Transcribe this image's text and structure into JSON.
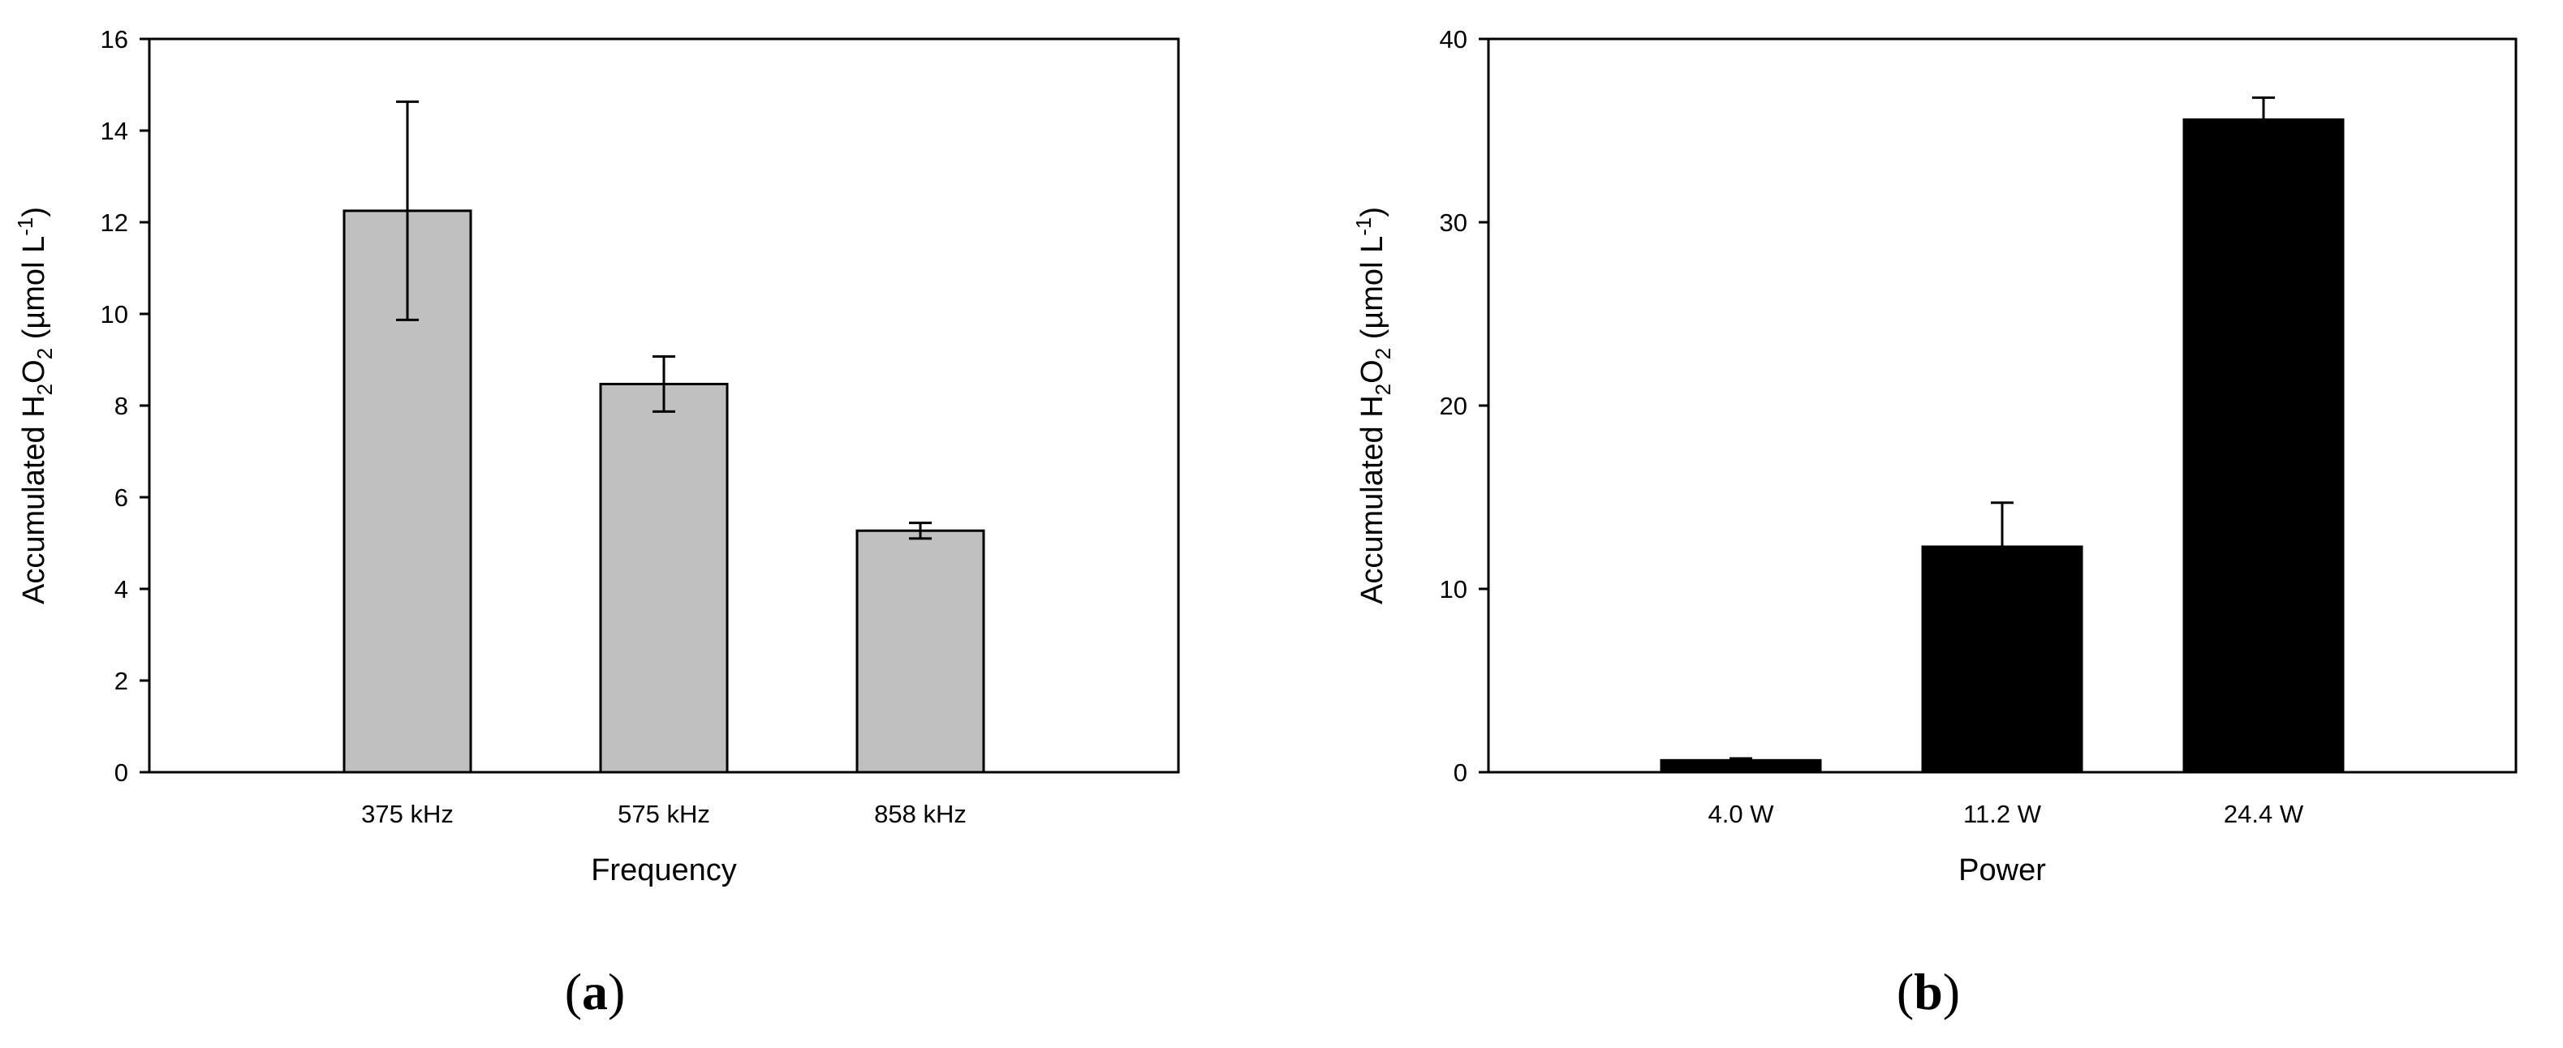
{
  "chart_data": [
    {
      "type": "bar",
      "panel_label": "a",
      "categories": [
        "375 kHz",
        "575 kHz",
        "858 kHz"
      ],
      "values": [
        12.25,
        8.47,
        5.27
      ],
      "errors": [
        2.38,
        0.6,
        0.17
      ],
      "error_style": "both",
      "bar_color": "#c0c0c0",
      "xlabel": "Frequency",
      "ylabel_parts": {
        "base": "Accumulated H",
        "sub1": "2",
        "mid": "O",
        "sub2": "2",
        "unit_open": " (µmol L",
        "sup": "-1",
        "unit_close": ")"
      },
      "ylim": [
        0,
        16
      ],
      "yticks": [
        0,
        2,
        4,
        6,
        8,
        10,
        12,
        14,
        16
      ],
      "grid": false
    },
    {
      "type": "bar",
      "panel_label": "b",
      "categories": [
        "4.0 W",
        "11.2 W",
        "24.4 W"
      ],
      "values": [
        0.65,
        12.3,
        35.6
      ],
      "errors": [
        0.1,
        2.4,
        1.2
      ],
      "error_style": "upper",
      "bar_color": "#000000",
      "xlabel": "Power",
      "ylabel_parts": {
        "base": "Accumulated H",
        "sub1": "2",
        "mid": "O",
        "sub2": "2",
        "unit_open": " (µmol L",
        "sup": "-1",
        "unit_close": ")"
      },
      "ylim": [
        0,
        40
      ],
      "yticks": [
        0,
        10,
        20,
        30,
        40
      ],
      "grid": false
    }
  ]
}
